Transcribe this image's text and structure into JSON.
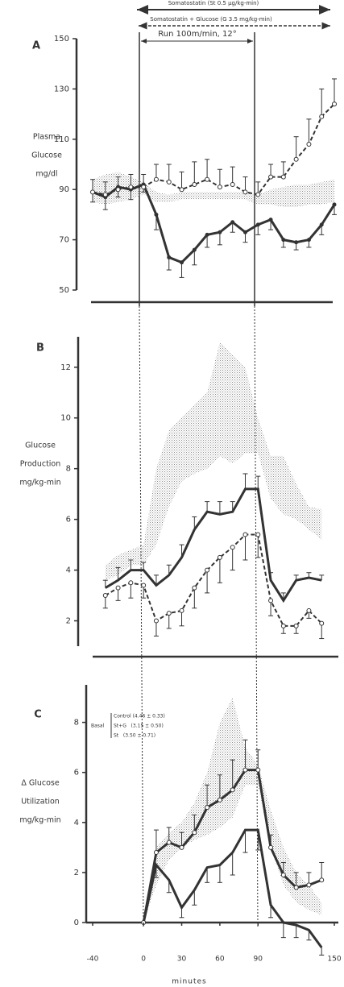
{
  "header": {
    "somatostatin": "Somatostatin (St 0.5 µg/kg-min)",
    "somatostatin_glucose": "Somatostatin + Glucose (G 3.5 mg/kg-min)",
    "run": "Run 100m/min, 12°"
  },
  "chart_data": [
    {
      "type": "line",
      "panel": "A",
      "ylabel": [
        "Plasma",
        "Glucose",
        "mg/dl"
      ],
      "xlim": [
        -40,
        150
      ],
      "ylim": [
        50,
        150
      ],
      "yticks": [
        50,
        70,
        90,
        110,
        130,
        150
      ],
      "x": [
        -40,
        -30,
        -20,
        -10,
        0,
        10,
        20,
        30,
        40,
        50,
        60,
        70,
        80,
        90,
        100,
        110,
        120,
        130,
        140,
        150
      ],
      "band": {
        "color": "#888888",
        "upper": [
          94,
          96,
          97,
          95,
          93,
          89,
          88,
          89,
          89,
          89,
          89,
          89,
          89,
          88,
          90,
          91,
          92,
          92,
          93,
          94
        ],
        "lower": [
          85,
          84,
          85,
          86,
          88,
          85,
          85,
          86,
          86,
          86,
          86,
          86,
          86,
          84,
          84,
          83,
          83,
          84,
          84,
          85
        ]
      },
      "series": [
        {
          "color": "#333333",
          "style": "solid",
          "marker": "filled",
          "error_direction": "down",
          "values": [
            89,
            87,
            91,
            90,
            92,
            80,
            63,
            61,
            66,
            72,
            73,
            77,
            73,
            76,
            78,
            70,
            69,
            70,
            76,
            84
          ],
          "errors": [
            4,
            5,
            4,
            4,
            3,
            6,
            5,
            6,
            6,
            5,
            5,
            4,
            4,
            4,
            4,
            3,
            3,
            3,
            4,
            4
          ]
        },
        {
          "color": "#333333",
          "style": "dashed",
          "marker": "open",
          "error_direction": "up",
          "values": [
            89,
            88,
            90,
            91,
            91,
            94,
            93,
            90,
            92,
            94,
            91,
            92,
            89,
            88,
            95,
            95,
            102,
            108,
            119,
            124
          ],
          "errors": [
            5,
            5,
            5,
            5,
            5,
            6,
            7,
            7,
            9,
            8,
            7,
            7,
            6,
            5,
            5,
            6,
            9,
            10,
            11,
            10
          ]
        }
      ]
    },
    {
      "type": "line",
      "panel": "B",
      "ylabel": [
        "Glucose",
        "Production",
        "mg/kg-min"
      ],
      "xlim": [
        -40,
        150
      ],
      "ylim": [
        1,
        13.2
      ],
      "yticks": [
        2,
        4,
        6,
        8,
        10,
        12
      ],
      "x": [
        -30,
        -20,
        -10,
        0,
        10,
        20,
        30,
        40,
        50,
        60,
        70,
        80,
        90,
        100,
        110,
        120,
        130,
        140
      ],
      "band": {
        "color": "#888888",
        "upper": [
          4.2,
          4.6,
          4.8,
          5.0,
          8.0,
          9.5,
          10.0,
          10.5,
          11.0,
          13.0,
          12.5,
          12.0,
          10.0,
          8.5,
          8.5,
          7.4,
          6.5,
          6.4
        ],
        "lower": [
          3.6,
          3.8,
          4.2,
          4.2,
          5.0,
          6.5,
          7.5,
          7.8,
          8.0,
          8.5,
          8.2,
          8.6,
          8.6,
          6.8,
          6.2,
          6.0,
          5.6,
          5.2
        ]
      },
      "series": [
        {
          "color": "#333333",
          "style": "solid",
          "marker": "none",
          "error_direction": "up",
          "values": [
            3.3,
            3.6,
            4.0,
            4.0,
            3.4,
            3.8,
            4.5,
            5.6,
            6.3,
            6.2,
            6.3,
            7.2,
            7.2,
            3.6,
            2.8,
            3.6,
            3.7,
            3.6
          ],
          "errors": [
            0.3,
            0.5,
            0.4,
            0.3,
            0.4,
            0.4,
            0.5,
            0.5,
            0.4,
            0.5,
            0.4,
            0.6,
            0.5,
            0.3,
            0.3,
            0.2,
            0.2,
            0.2
          ]
        },
        {
          "color": "#333333",
          "style": "dashed",
          "marker": "open",
          "error_direction": "down",
          "values": [
            3.0,
            3.3,
            3.5,
            3.4,
            2.0,
            2.3,
            2.4,
            3.3,
            4.0,
            4.5,
            4.9,
            5.4,
            5.4,
            2.8,
            1.8,
            1.8,
            2.4,
            1.9
          ],
          "errors": [
            0.5,
            0.5,
            0.6,
            0.5,
            0.6,
            0.6,
            0.6,
            0.8,
            0.9,
            1.0,
            0.9,
            1.0,
            0.9,
            0.6,
            0.3,
            0.3,
            0.3,
            0.6
          ]
        }
      ]
    },
    {
      "type": "line",
      "panel": "C",
      "ylabel": [
        "Δ Glucose",
        "Utilization",
        "mg/kg-min"
      ],
      "xlim": [
        -40,
        150
      ],
      "ylim": [
        0,
        9.5
      ],
      "yticks": [
        0,
        2,
        4,
        6,
        8
      ],
      "xticks": [
        -40,
        0,
        30,
        60,
        90,
        150
      ],
      "xlabel": "minutes",
      "basal_legend": {
        "title": "Basal",
        "entries": [
          "Control (4.46 ± 0.33)",
          "St+G   (3.15 ± 0.50)",
          "St   (3.50 ± 0.71)"
        ]
      },
      "x": [
        0,
        10,
        20,
        30,
        40,
        50,
        60,
        70,
        80,
        90,
        100,
        110,
        120,
        130,
        140
      ],
      "band": {
        "color": "#888888",
        "upper": [
          0,
          3.0,
          3.6,
          4.0,
          4.8,
          6.0,
          8.0,
          9.0,
          7.0,
          6.3,
          4.5,
          3.0,
          2.0,
          1.5,
          0.8
        ],
        "lower": [
          0,
          1.5,
          2.5,
          3.0,
          3.3,
          3.5,
          3.8,
          4.2,
          5.5,
          5.5,
          3.0,
          1.5,
          0.8,
          0.5,
          0.3
        ]
      },
      "series": [
        {
          "color": "#333333",
          "style": "solid",
          "marker": "none",
          "error_direction": "down",
          "values": [
            0,
            2.3,
            1.7,
            0.6,
            1.3,
            2.2,
            2.3,
            2.8,
            3.7,
            3.7,
            0.7,
            0.0,
            -0.1,
            -0.3,
            -1.0
          ],
          "errors": [
            null,
            0.5,
            0.5,
            0.4,
            0.6,
            0.6,
            0.7,
            0.9,
            0.9,
            0.8,
            0.5,
            0.6,
            0.5,
            0.4,
            0.3
          ]
        },
        {
          "color": "#333333",
          "style": "solid",
          "marker": "open",
          "error_direction": "up",
          "values": [
            0,
            2.8,
            3.2,
            3.0,
            3.6,
            4.6,
            4.9,
            5.3,
            6.1,
            6.1,
            3.0,
            1.9,
            1.4,
            1.5,
            1.7
          ],
          "errors": [
            null,
            0.9,
            0.6,
            0.6,
            0.7,
            0.9,
            1.0,
            1.2,
            1.2,
            0.8,
            0.5,
            0.5,
            0.6,
            0.5,
            0.7
          ]
        }
      ]
    }
  ]
}
